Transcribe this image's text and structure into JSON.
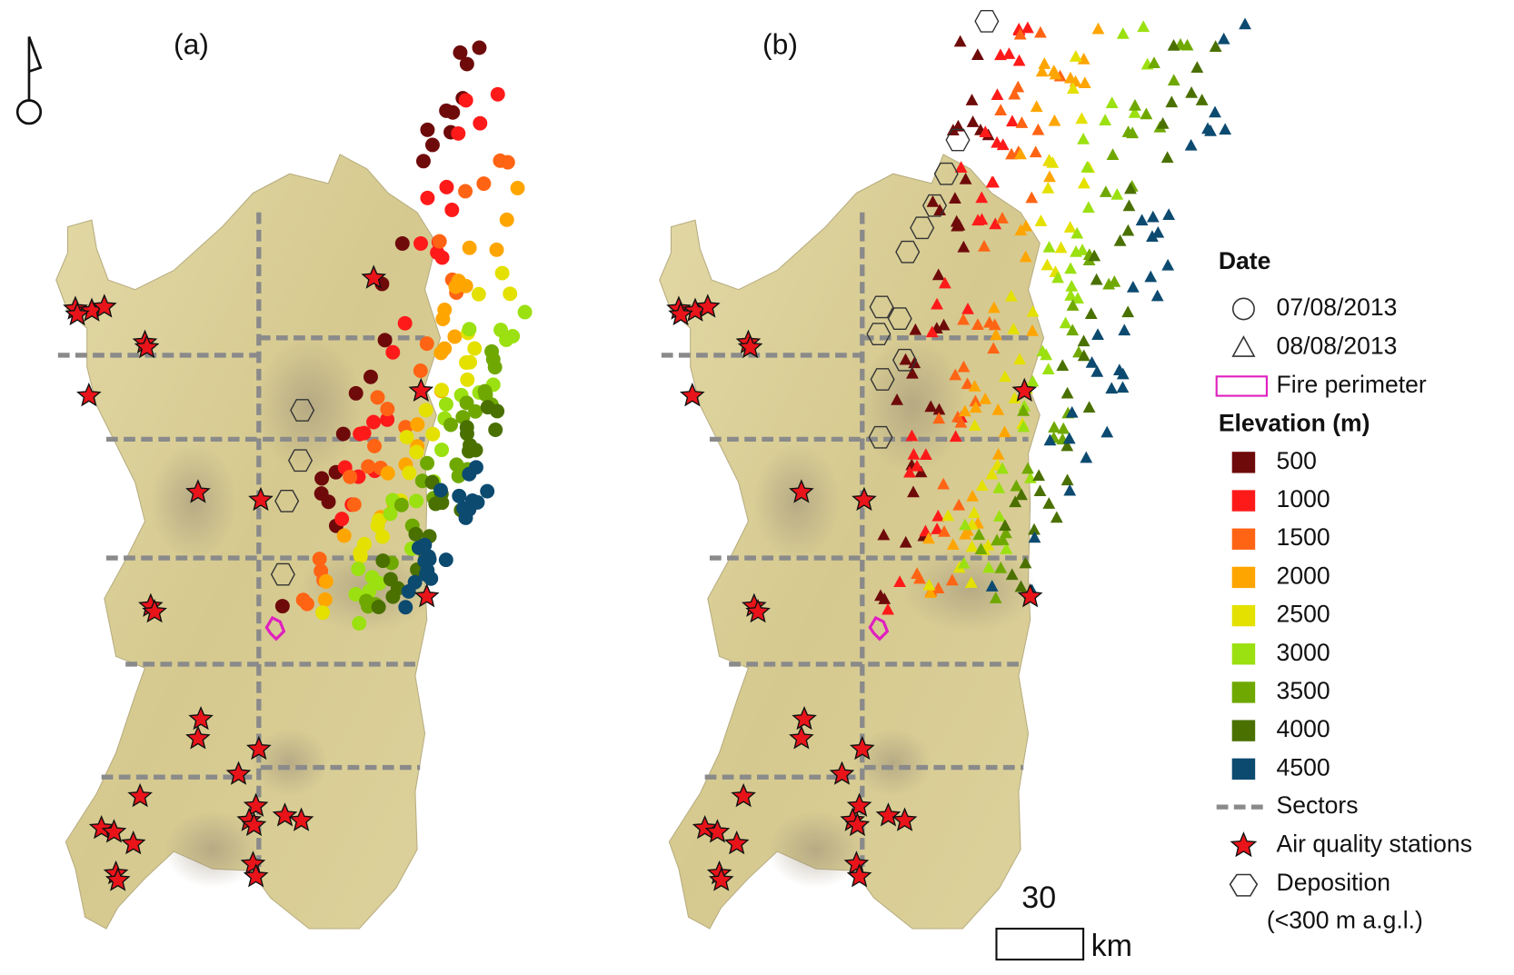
{
  "panels": [
    {
      "label": "(a)"
    },
    {
      "label": "(b)"
    }
  ],
  "legend": {
    "date_title": "Date",
    "dates": [
      "07/08/2013",
      "08/08/2013"
    ],
    "fire_perimeter": "Fire perimeter",
    "elevation_title": "Elevation (m)",
    "elevation_classes": [
      {
        "value": 500,
        "color": "#6e0a0a"
      },
      {
        "value": 1000,
        "color": "#ff1a1a"
      },
      {
        "value": 1500,
        "color": "#ff6414"
      },
      {
        "value": 2000,
        "color": "#ffa500"
      },
      {
        "value": 2500,
        "color": "#e4e000"
      },
      {
        "value": 3000,
        "color": "#9be010"
      },
      {
        "value": 3500,
        "color": "#6fa800"
      },
      {
        "value": 4000,
        "color": "#4a7000"
      },
      {
        "value": 4500,
        "color": "#0c4a70"
      }
    ],
    "sectors": "Sectors",
    "stations": "Air quality stations",
    "deposition": "Deposition",
    "deposition_note": "(<300 m a.g.l.)"
  },
  "scale_bar": {
    "value": 30,
    "unit": "km"
  }
}
